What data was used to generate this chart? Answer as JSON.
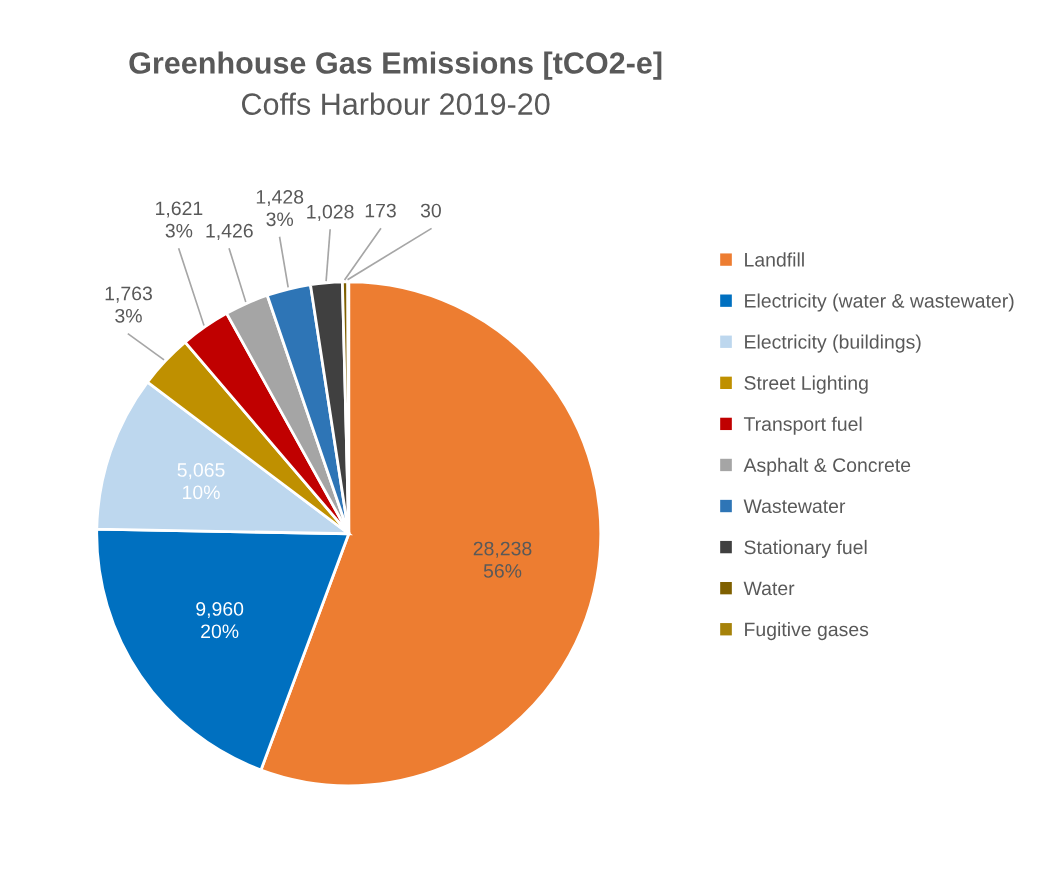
{
  "chart_data": {
    "type": "pie",
    "title": "Greenhouse Gas Emissions [tCO2-e]",
    "subtitle": "Coffs Harbour 2019-20",
    "categories": [
      "Landfill",
      "Electricity (water & wastewater)",
      "Electricity (buildings)",
      "Street Lighting",
      "Transport fuel",
      "Asphalt & Concrete",
      "Wastewater",
      "Stationary fuel",
      "Water",
      "Fugitive gases"
    ],
    "values": [
      28238,
      9960,
      5065,
      1763,
      1621,
      1426,
      1428,
      1028,
      173,
      30
    ],
    "value_labels": [
      "28,238\n56%",
      "9,960\n20%",
      "5,065\n10%",
      "1,763\n3%",
      "1,621\n3%",
      "1,426",
      "1,428\n3%",
      "1,028",
      "173",
      "30"
    ],
    "colors": [
      "#ed7d31",
      "#0070c0",
      "#bdd7ee",
      "#bf9000",
      "#c00000",
      "#a5a5a5",
      "#2e75b6",
      "#404040",
      "#7f6000",
      "#a6820a"
    ],
    "legend": "right"
  }
}
